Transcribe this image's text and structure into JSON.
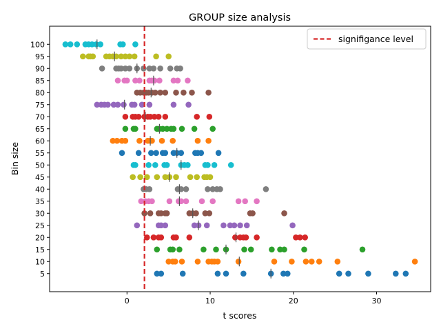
{
  "chart_data": {
    "type": "scatter",
    "title": "GROUP size analysis",
    "xlabel": "t scores",
    "ylabel": "Bin size",
    "xlim": [
      -9.3,
      36.5
    ],
    "ylim": [
      -2.5,
      107.5
    ],
    "xticks": [
      0,
      10,
      20,
      30
    ],
    "xtick_labels": [
      "0",
      "10",
      "20",
      "30"
    ],
    "yticks": [
      5,
      10,
      15,
      20,
      25,
      30,
      35,
      40,
      45,
      50,
      55,
      60,
      65,
      70,
      75,
      80,
      85,
      90,
      95,
      100
    ],
    "ytick_labels": [
      "5",
      "10",
      "15",
      "20",
      "25",
      "30",
      "35",
      "40",
      "45",
      "50",
      "55",
      "60",
      "65",
      "70",
      "75",
      "80",
      "85",
      "90",
      "95",
      "100"
    ],
    "grid": false,
    "legend_position": "top-right",
    "reference_line": {
      "x": 2.1,
      "label": "signifigance level",
      "color": "#d62728",
      "style": "dashed"
    },
    "series": [
      {
        "bin": 5,
        "color": "#1f77b4",
        "marker_x": 17.3,
        "x": [
          3.6,
          4.1,
          6.7,
          10.9,
          11.9,
          14.0,
          17.3,
          18.8,
          19.3,
          25.5,
          26.6,
          29.0,
          32.3,
          33.5
        ]
      },
      {
        "bin": 10,
        "color": "#ff7f0e",
        "marker_x": 13.5,
        "x": [
          5.0,
          5.5,
          5.8,
          6.6,
          8.5,
          9.8,
          10.2,
          10.5,
          10.9,
          13.4,
          17.7,
          19.8,
          21.5,
          22.2,
          23.1,
          25.3,
          34.6
        ]
      },
      {
        "bin": 15,
        "color": "#2ca02c",
        "marker_x": 11.9,
        "x": [
          3.6,
          5.2,
          5.5,
          6.3,
          9.2,
          10.7,
          11.9,
          14.1,
          14.9,
          17.4,
          18.4,
          18.9,
          21.3,
          28.3
        ]
      },
      {
        "bin": 20,
        "color": "#d62728",
        "marker_x": 13.1,
        "x": [
          2.4,
          3.2,
          3.8,
          4.1,
          5.6,
          5.9,
          7.5,
          13.0,
          13.6,
          14.0,
          14.3,
          15.6,
          20.3,
          20.8,
          21.4
        ]
      },
      {
        "bin": 25,
        "color": "#9467bd",
        "marker_x": 8.6,
        "x": [
          1.2,
          3.8,
          4.1,
          4.6,
          8.1,
          8.6,
          9.6,
          11.6,
          12.4,
          12.9,
          13.6,
          14.4,
          19.9
        ]
      },
      {
        "bin": 30,
        "color": "#8c564b",
        "marker_x": 7.9,
        "x": [
          2.1,
          2.8,
          3.8,
          4.1,
          4.6,
          4.8,
          7.5,
          7.9,
          8.3,
          9.4,
          9.9,
          14.8,
          15.1,
          18.9
        ]
      },
      {
        "bin": 35,
        "color": "#e377c2",
        "marker_x": 6.3,
        "x": [
          1.7,
          2.2,
          2.6,
          3.0,
          5.1,
          6.2,
          6.5,
          7.1,
          9.0,
          10.3,
          13.4,
          14.2,
          15.6
        ]
      },
      {
        "bin": 40,
        "color": "#7f7f7f",
        "marker_x": 6.3,
        "x": [
          2.0,
          2.3,
          2.7,
          6.1,
          6.5,
          7.1,
          9.7,
          10.3,
          10.8,
          11.2,
          16.7
        ]
      },
      {
        "bin": 45,
        "color": "#bcbd22",
        "marker_x": 5.1,
        "x": [
          0.7,
          1.6,
          2.4,
          3.6,
          4.6,
          5.1,
          5.9,
          7.6,
          8.4,
          9.3,
          9.6,
          10.0
        ]
      },
      {
        "bin": 50,
        "color": "#17becf",
        "marker_x": 6.5,
        "x": [
          0.8,
          1.0,
          2.6,
          3.4,
          4.5,
          4.8,
          6.5,
          6.9,
          7.3,
          9.4,
          9.7,
          10.5,
          12.5
        ]
      },
      {
        "bin": 55,
        "color": "#1f77b4",
        "marker_x": 6.0,
        "x": [
          -0.6,
          1.4,
          2.9,
          3.5,
          4.3,
          4.6,
          5.6,
          6.0,
          6.5,
          8.2,
          8.5,
          8.9,
          11.0
        ]
      },
      {
        "bin": 60,
        "color": "#ff7f0e",
        "marker_x": 2.8,
        "x": [
          -1.7,
          -1.2,
          -0.6,
          -0.2,
          1.5,
          2.5,
          2.8,
          3.0,
          4.2,
          5.5,
          8.5,
          9.8
        ]
      },
      {
        "bin": 65,
        "color": "#2ca02c",
        "marker_x": 3.9,
        "x": [
          -0.2,
          0.8,
          1.0,
          3.6,
          3.9,
          4.3,
          4.8,
          5.3,
          5.6,
          6.6,
          8.1,
          10.3
        ]
      },
      {
        "bin": 70,
        "color": "#d62728",
        "marker_x": 2.2,
        "x": [
          -0.2,
          0.7,
          1.0,
          1.4,
          2.1,
          2.5,
          2.8,
          3.3,
          3.8,
          4.6,
          8.4,
          9.9
        ]
      },
      {
        "bin": 75,
        "color": "#9467bd",
        "marker_x": -0.3,
        "x": [
          -3.6,
          -3.1,
          -2.7,
          -2.3,
          -1.6,
          -1.1,
          -0.4,
          0.6,
          0.9,
          1.8,
          2.7,
          5.6,
          7.4
        ]
      },
      {
        "bin": 80,
        "color": "#8c564b",
        "marker_x": 2.9,
        "x": [
          1.2,
          1.6,
          2.0,
          2.3,
          2.6,
          3.0,
          3.4,
          4.0,
          4.6,
          5.9,
          6.8,
          7.8,
          9.8
        ]
      },
      {
        "bin": 85,
        "color": "#e377c2",
        "marker_x": 3.2,
        "x": [
          -1.1,
          -0.3,
          0.0,
          1.0,
          1.5,
          2.7,
          3.0,
          3.3,
          3.9,
          5.6,
          6.1,
          7.3
        ]
      },
      {
        "bin": 90,
        "color": "#7f7f7f",
        "marker_x": 1.2,
        "x": [
          -3.0,
          -1.3,
          -1.0,
          -0.7,
          -0.2,
          0.3,
          1.2,
          2.0,
          2.7,
          3.2,
          4.0,
          5.2,
          6.0,
          6.4
        ]
      },
      {
        "bin": 95,
        "color": "#bcbd22",
        "marker_x": -1.5,
        "x": [
          -5.3,
          -4.6,
          -4.4,
          -4.1,
          -2.5,
          -2.1,
          -1.7,
          -1.3,
          -0.7,
          -0.2,
          0.3,
          0.9,
          3.5,
          5.0
        ]
      },
      {
        "bin": 100,
        "color": "#17becf",
        "marker_x": -3.6,
        "x": [
          -7.4,
          -6.8,
          -6.0,
          -5.0,
          -4.6,
          -4.2,
          -3.7,
          -3.2,
          -0.8,
          -0.5,
          1.0
        ]
      }
    ]
  }
}
